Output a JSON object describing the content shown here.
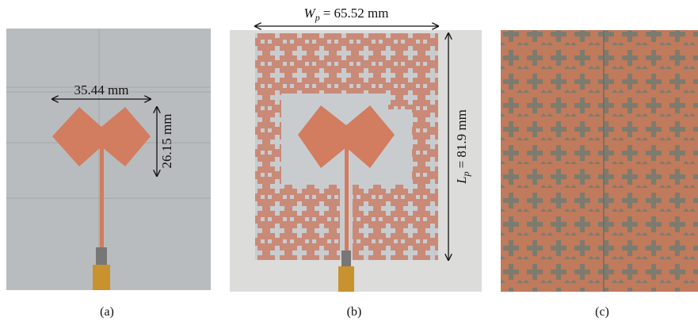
{
  "panels": [
    {
      "caption": "(a)",
      "annotations": [
        "35.44 mm",
        "26.15 mm"
      ]
    },
    {
      "caption": "(b)",
      "width_label": {
        "symbol": "W",
        "subscript": "p",
        "value": "= 65.52 mm"
      },
      "length_label": {
        "symbol": "L",
        "subscript": "p",
        "value": "= 81.9 mm"
      }
    },
    {
      "caption": "(c)"
    }
  ]
}
